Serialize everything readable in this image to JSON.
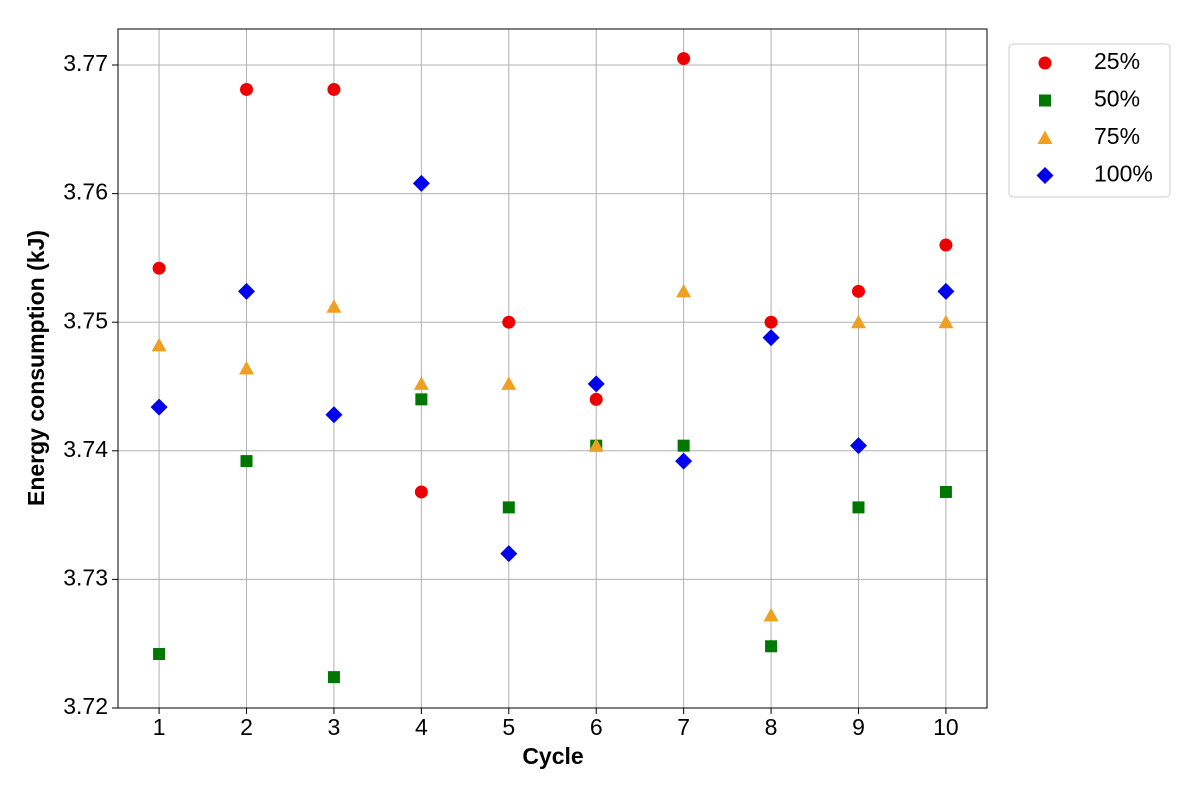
{
  "chart_data": {
    "type": "scatter",
    "xlabel": "Cycle",
    "ylabel": "Energy consumption (kJ)",
    "x": [
      1,
      2,
      3,
      4,
      5,
      6,
      7,
      8,
      9,
      10
    ],
    "series": [
      {
        "name": "25%",
        "color": "#ee0000",
        "marker": "circle",
        "values": [
          3.7542,
          3.7681,
          3.7681,
          3.7368,
          3.75,
          3.744,
          3.7705,
          3.75,
          3.7524,
          3.756
        ]
      },
      {
        "name": "50%",
        "color": "#007700",
        "marker": "square",
        "values": [
          3.7242,
          3.7392,
          3.7224,
          3.744,
          3.7356,
          3.7404,
          3.7404,
          3.7248,
          3.7356,
          3.7368
        ]
      },
      {
        "name": "75%",
        "color": "#f0a020",
        "marker": "triangle",
        "values": [
          3.7482,
          3.7464,
          3.7512,
          3.7452,
          3.7452,
          3.7404,
          3.7524,
          3.7272,
          3.75,
          3.75
        ]
      },
      {
        "name": "100%",
        "color": "#0000ee",
        "marker": "diamond",
        "values": [
          3.7434,
          3.7524,
          3.7428,
          3.7608,
          3.732,
          3.7452,
          3.7392,
          3.7488,
          3.7404,
          3.7524
        ]
      }
    ],
    "xlim": [
      0.53,
      10.47
    ],
    "xticks": [
      1,
      2,
      3,
      4,
      5,
      6,
      7,
      8,
      9,
      10
    ],
    "ylim": [
      3.72,
      3.7728
    ],
    "yticks": [
      3.72,
      3.73,
      3.74,
      3.75,
      3.76,
      3.77
    ],
    "grid": true,
    "legend": "outside upper right"
  }
}
